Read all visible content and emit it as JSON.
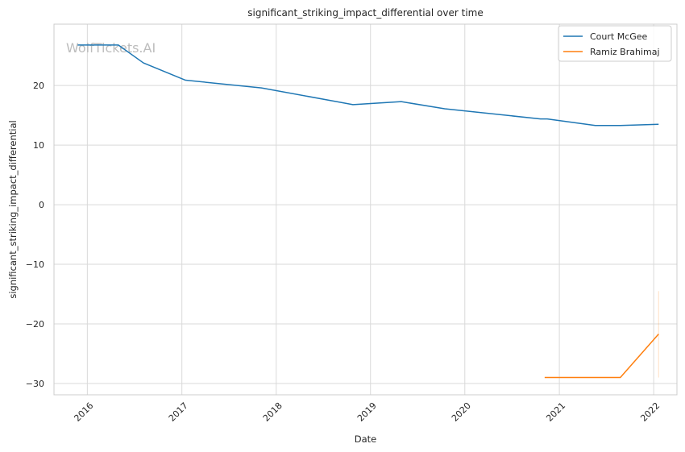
{
  "chart_data": {
    "type": "line",
    "title": "significant_striking_impact_differential over time",
    "xlabel": "Date",
    "ylabel": "significant_striking_impact_differential",
    "watermark": "WolfTickets.AI",
    "xlim": [
      "2015-08-25",
      "2022-04-01"
    ],
    "ylim": [
      -31.9,
      30.3
    ],
    "x_ticks": [
      "2016-01-01",
      "2017-01-01",
      "2018-01-01",
      "2019-01-01",
      "2020-01-01",
      "2021-01-01",
      "2022-01-01"
    ],
    "x_tick_labels": [
      "2016",
      "2017",
      "2018",
      "2019",
      "2020",
      "2021",
      "2022"
    ],
    "y_ticks": [
      -30,
      -20,
      -10,
      0,
      10,
      20
    ],
    "y_tick_labels": [
      "−30",
      "−20",
      "−10",
      "0",
      "10",
      "20"
    ],
    "grid": true,
    "legend_position": "top-right",
    "series": [
      {
        "name": "Court McGee",
        "color": "#1f77b4",
        "points": [
          {
            "x": "2015-11-25",
            "y": 26.8
          },
          {
            "x": "2016-04-30",
            "y": 26.8
          },
          {
            "x": "2016-08-05",
            "y": 23.8
          },
          {
            "x": "2017-01-15",
            "y": 20.9
          },
          {
            "x": "2017-11-05",
            "y": 19.6
          },
          {
            "x": "2018-10-25",
            "y": 16.8
          },
          {
            "x": "2019-04-30",
            "y": 17.3
          },
          {
            "x": "2019-10-15",
            "y": 16.1
          },
          {
            "x": "2020-10-20",
            "y": 14.4
          },
          {
            "x": "2020-11-15",
            "y": 14.4
          },
          {
            "x": "2021-05-20",
            "y": 13.3
          },
          {
            "x": "2021-08-25",
            "y": 13.3
          },
          {
            "x": "2022-01-20",
            "y": 13.5
          }
        ]
      },
      {
        "name": "Ramiz Brahimaj",
        "color": "#ff7f0e",
        "points": [
          {
            "x": "2020-11-05",
            "y": -29.0
          },
          {
            "x": "2021-08-25",
            "y": -29.0
          },
          {
            "x": "2022-01-20",
            "y": -21.7
          }
        ],
        "error_band": {
          "x": "2022-01-20",
          "low": -29.0,
          "high": -14.5
        }
      }
    ]
  }
}
